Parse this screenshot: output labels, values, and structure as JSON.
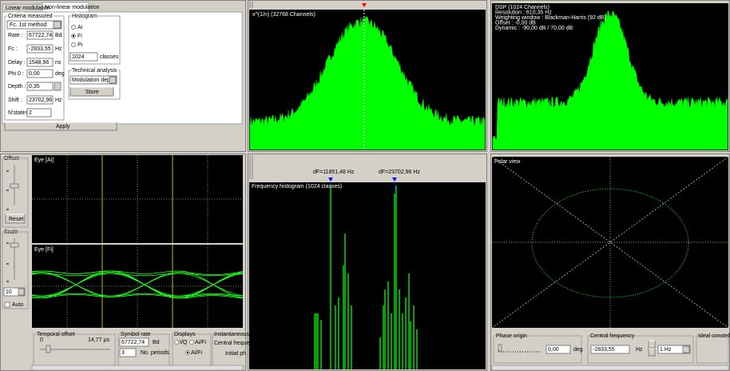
{
  "tabs": [
    "Linear modulation",
    "Non-linear modulation"
  ],
  "criteria": {
    "title": "Criteria measured",
    "method": "Fc. 1st method",
    "fields": [
      {
        "label": "Rate :",
        "value": "67722,74",
        "unit": "Bd"
      },
      {
        "label": "Fc :",
        "value": "-2833,55",
        "unit": "Hz"
      },
      {
        "label": "Delay :",
        "value": "1548,96",
        "unit": "ns"
      },
      {
        "label": "Phi 0 :",
        "value": "0,00",
        "unit": "deg"
      },
      {
        "label": "Depth :",
        "value": "0,35"
      },
      {
        "label": "Shift :",
        "value": "23702,96",
        "unit": "Hz"
      },
      {
        "label": "N'states",
        "value": "2"
      }
    ]
  },
  "histogram": {
    "title": "Histogram",
    "options": [
      "Ai",
      "Fi",
      "Pi"
    ],
    "classes": "1024",
    "classes_unit": "classes"
  },
  "technical": {
    "title": "Technical analysis",
    "select": "Modulation depth",
    "button": "Store"
  },
  "apply": "Apply",
  "spectrum1": {
    "label": "x^(1/n) (32768 Channels)"
  },
  "spectrum2": {
    "lines": [
      "DSP (1024 Channels)",
      "Resolution : 610,35 Hz",
      "Weighting window : Blackman-Harris (92 dB)",
      "Offset : -0,00 dB",
      "Dynamic : -90,00 dB / 70,00 dB"
    ]
  },
  "eye": {
    "offset": "Offset",
    "reset": "Reset",
    "scale": "Scale",
    "scale_value": "10",
    "auto": "Auto",
    "eye_ai": "Eye [Ai]",
    "eye_fi": "Eye [Fi]",
    "temporal": {
      "title": "Temporal offset",
      "min": "0",
      "value": "14,77 µs"
    },
    "symbol": {
      "title": "Symbol rate",
      "value": "67722,74",
      "unit": "Bd",
      "periods": "3",
      "periods_label": "No. periods"
    },
    "displays": {
      "title": "Displays",
      "iq": "I/Q",
      "aifi1": "Ai/Fi",
      "aifi2": "Ai/Fi"
    },
    "instant": {
      "title": "Instantaneous p",
      "central": "Central freque",
      "initial": "Initial ph"
    }
  },
  "freq_hist": {
    "markers": [
      "dF=11851,48 Hz",
      "dF=23702,96 Hz"
    ],
    "label": "Frequency histogram (1024 classes)"
  },
  "polar": {
    "label": "Polar view",
    "phase": {
      "title": "Phase origin",
      "value": "0,00",
      "unit": "deg"
    },
    "central": {
      "title": "Central frequency",
      "value": "-2833,55",
      "unit": "Hz",
      "step": "1 Hz"
    },
    "ideal": "Ideal constellatio"
  }
}
